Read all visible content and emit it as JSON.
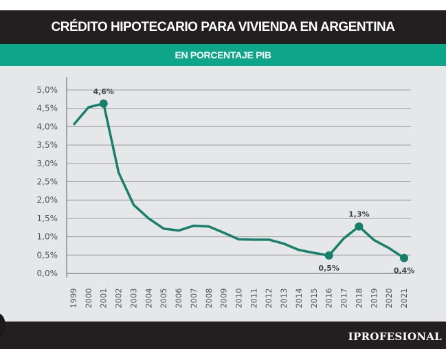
{
  "header": {
    "title": "CRÉDITO HIPOTECARIO PARA VIVIENDA EN ARGENTINA",
    "subtitle": "EN PORCENTAJE PIB"
  },
  "footer": {
    "brand": "IPROFESIONAL"
  },
  "colors": {
    "line": "#17806a",
    "title_bg": "#231f20",
    "subtitle_bg": "#0ea68a",
    "plot_bg": "#e6e7e8"
  },
  "chart_data": {
    "type": "line",
    "title": "CRÉDITO HIPOTECARIO PARA VIVIENDA EN ARGENTINA",
    "subtitle": "EN PORCENTAJE PIB",
    "xlabel": "",
    "ylabel": "",
    "ylim": [
      0,
      5
    ],
    "yticks": [
      "0,0%",
      "0,5%",
      "1,0%",
      "1,5%",
      "2,0%",
      "2,5%",
      "3,0%",
      "3,5%",
      "4,0%",
      "4,5%",
      "5,0%"
    ],
    "x": [
      "1999",
      "2000",
      "2001",
      "2002",
      "2003",
      "2004",
      "2005",
      "2006",
      "2007",
      "2008",
      "2009",
      "2010",
      "2011",
      "2012",
      "2013",
      "2014",
      "2015",
      "2016",
      "2017",
      "2018",
      "2019",
      "2020",
      "2021"
    ],
    "series": [
      {
        "name": "Crédito hipotecario (% PIB)",
        "values": [
          4.05,
          4.53,
          4.63,
          2.75,
          1.87,
          1.5,
          1.22,
          1.17,
          1.3,
          1.28,
          1.11,
          0.93,
          0.92,
          0.92,
          0.81,
          0.64,
          0.56,
          0.49,
          0.96,
          1.28,
          0.91,
          0.69,
          0.42
        ]
      }
    ],
    "annotations": [
      {
        "x": "2001",
        "label": "4,6%",
        "position": "above"
      },
      {
        "x": "2016",
        "label": "0,5%",
        "position": "below"
      },
      {
        "x": "2018",
        "label": "1,3%",
        "position": "above"
      },
      {
        "x": "2021",
        "label": "0,4%",
        "position": "below"
      }
    ],
    "grid": true,
    "legend": "none"
  }
}
